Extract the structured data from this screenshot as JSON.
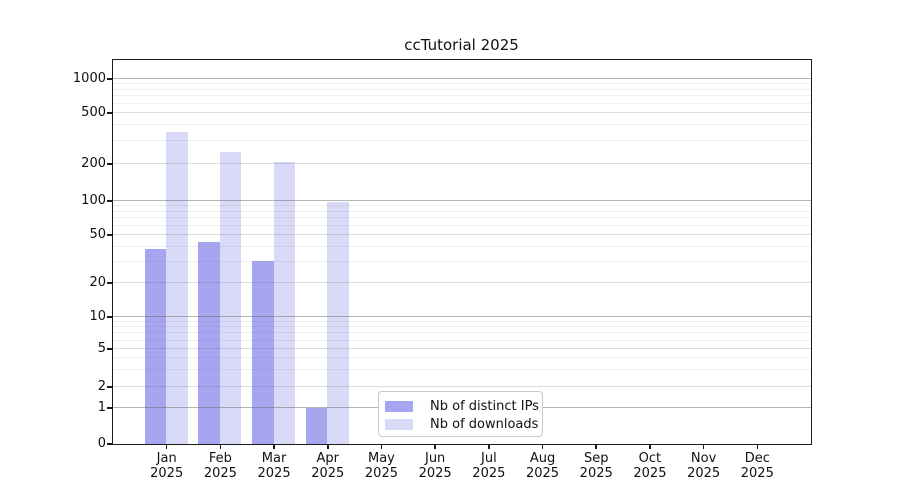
{
  "chart_data": {
    "type": "bar",
    "title": "ccTutorial 2025",
    "categories": [
      {
        "month": "Jan",
        "year": "2025"
      },
      {
        "month": "Feb",
        "year": "2025"
      },
      {
        "month": "Mar",
        "year": "2025"
      },
      {
        "month": "Apr",
        "year": "2025"
      },
      {
        "month": "May",
        "year": "2025"
      },
      {
        "month": "Jun",
        "year": "2025"
      },
      {
        "month": "Jul",
        "year": "2025"
      },
      {
        "month": "Aug",
        "year": "2025"
      },
      {
        "month": "Sep",
        "year": "2025"
      },
      {
        "month": "Oct",
        "year": "2025"
      },
      {
        "month": "Nov",
        "year": "2025"
      },
      {
        "month": "Dec",
        "year": "2025"
      }
    ],
    "series": [
      {
        "name": "Nb of distinct IPs",
        "color": "#a5a5f0",
        "values": [
          38,
          43,
          30,
          1,
          0,
          0,
          0,
          0,
          0,
          0,
          0,
          0
        ]
      },
      {
        "name": "Nb of downloads",
        "color": "#d9d9f8",
        "values": [
          350,
          245,
          205,
          97,
          0,
          0,
          0,
          0,
          0,
          0,
          0,
          0
        ]
      }
    ],
    "y_axis": {
      "scale": "symlog",
      "tick_labels": [
        0,
        1,
        2,
        5,
        10,
        20,
        50,
        100,
        200,
        500,
        1000
      ]
    },
    "grid": true,
    "legend_position": "bottom-center",
    "colors": {
      "grid_major": "rgba(100,100,100,0.48)",
      "grid_mid": "rgba(110,110,110,0.24)",
      "grid_minor": "rgba(120,120,120,0.12)",
      "axis": "#1b1b1b"
    }
  }
}
